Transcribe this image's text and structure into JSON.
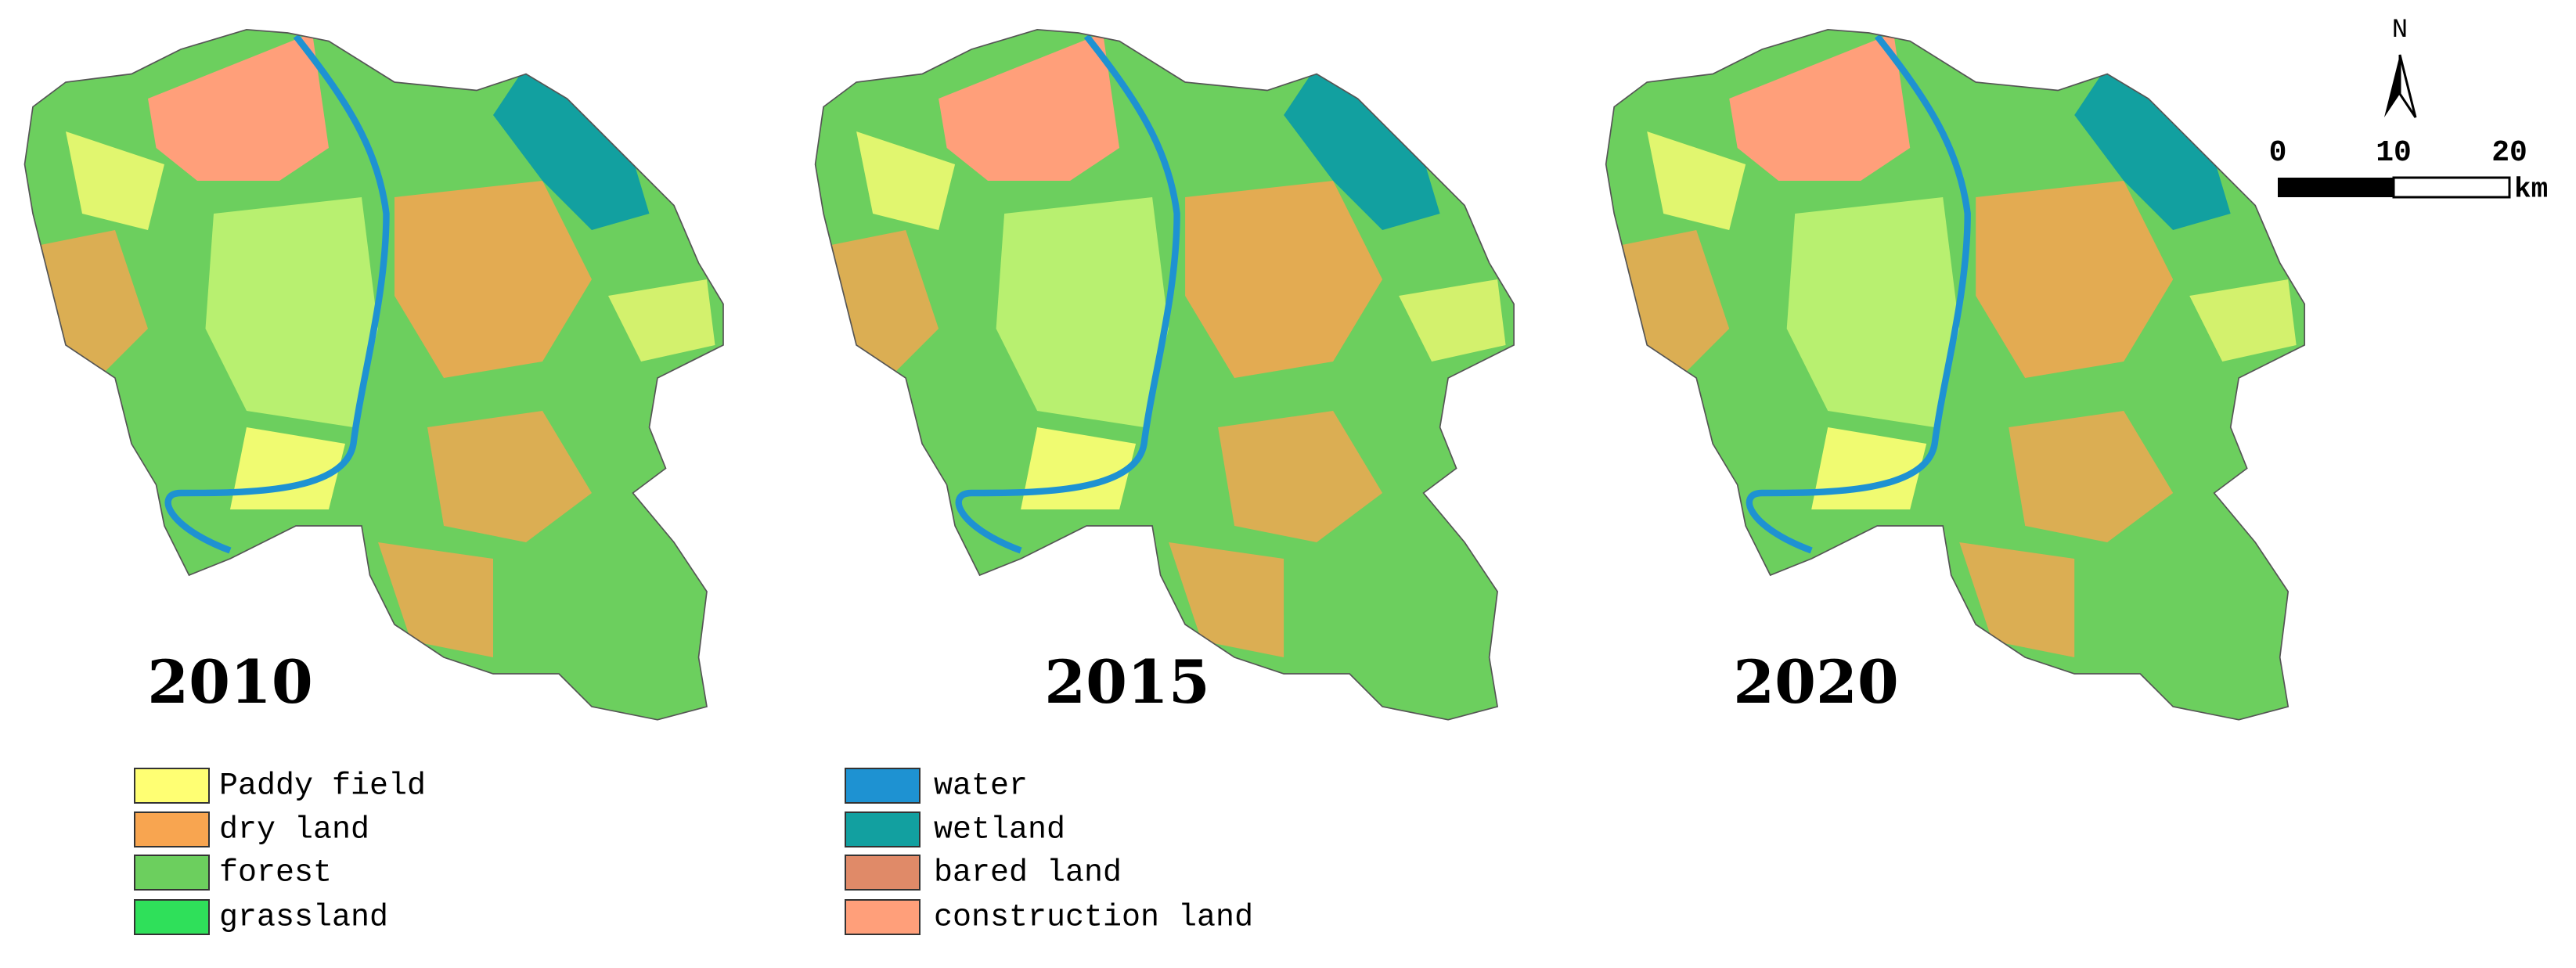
{
  "maps": [
    {
      "year": "2010"
    },
    {
      "year": "2015"
    },
    {
      "year": "2020"
    }
  ],
  "legend": [
    {
      "label": "Paddy field",
      "color": "#ffff73"
    },
    {
      "label": "dry land",
      "color": "#f8a550"
    },
    {
      "label": "forest",
      "color": "#6ccf5e"
    },
    {
      "label": "grassland",
      "color": "#2fe05a"
    },
    {
      "label": "water",
      "color": "#1e92d2"
    },
    {
      "label": "wetland",
      "color": "#12a0a0"
    },
    {
      "label": "bared land",
      "color": "#e08a68"
    },
    {
      "label": "construction land",
      "color": "#ff9f7a"
    }
  ],
  "north_arrow": {
    "label": "N"
  },
  "scale_bar": {
    "ticks": [
      0,
      10,
      20
    ],
    "unit": "km"
  }
}
